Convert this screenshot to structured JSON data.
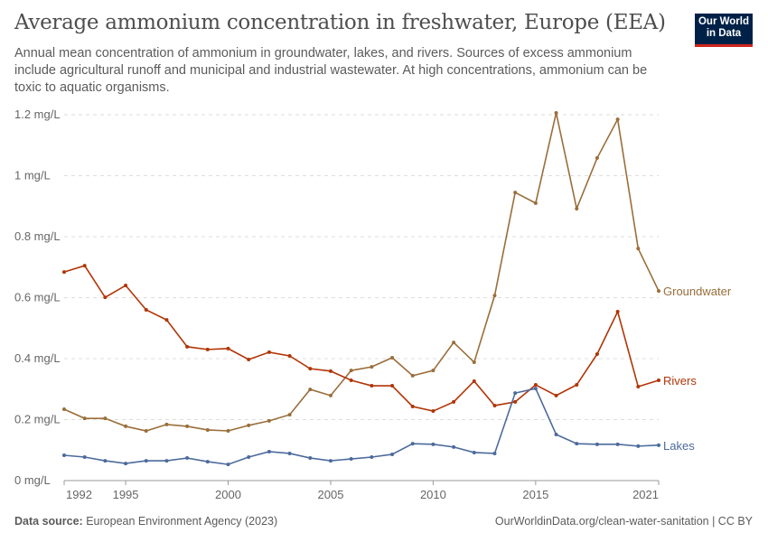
{
  "header": {
    "title": "Average ammonium concentration in freshwater, Europe (EEA)",
    "subtitle": "Annual mean concentration of ammonium in groundwater, lakes, and rivers. Sources of excess ammonium include agricultural runoff and municipal and industrial wastewater. At high concentrations, ammonium can be toxic to aquatic organisms.",
    "logo_line1": "Our World",
    "logo_line2": "in Data"
  },
  "footer": {
    "source_label": "Data source:",
    "source": "European Environment Agency (2023)",
    "link": "OurWorldinData.org/clean-water-sanitation | CC BY"
  },
  "chart_data": {
    "type": "line",
    "title": "Average ammonium concentration in freshwater, Europe (EEA)",
    "x": [
      1992,
      1993,
      1994,
      1995,
      1996,
      1997,
      1998,
      1999,
      2000,
      2001,
      2002,
      2003,
      2004,
      2005,
      2006,
      2007,
      2008,
      2009,
      2010,
      2011,
      2012,
      2013,
      2014,
      2015,
      2016,
      2017,
      2018,
      2019,
      2020,
      2021
    ],
    "xticks": [
      1992,
      1995,
      2000,
      2005,
      2010,
      2015,
      2021
    ],
    "yticks": [
      0,
      0.2,
      0.4,
      0.6,
      0.8,
      1,
      1.2
    ],
    "ytick_labels": [
      "0 mg/L",
      "0.2 mg/L",
      "0.4 mg/L",
      "0.6 mg/L",
      "0.8 mg/L",
      "1 mg/L",
      "1.2 mg/L"
    ],
    "ylim": [
      0,
      1.2
    ],
    "xlim": [
      1992,
      2021
    ],
    "grid": "horizontal dashed",
    "legend": "inline labels at right end",
    "series": [
      {
        "name": "Groundwater",
        "color": "#9a6e3a",
        "values": [
          0.234,
          0.204,
          0.204,
          0.178,
          0.163,
          0.184,
          0.178,
          0.166,
          0.163,
          0.181,
          0.196,
          0.216,
          0.299,
          0.279,
          0.361,
          0.373,
          0.403,
          0.344,
          0.361,
          0.453,
          0.388,
          0.607,
          0.945,
          0.91,
          1.206,
          0.892,
          1.058,
          1.185,
          0.761,
          0.622
        ]
      },
      {
        "name": "Rivers",
        "color": "#b13507",
        "values": [
          0.684,
          0.705,
          0.601,
          0.64,
          0.56,
          0.527,
          0.439,
          0.43,
          0.433,
          0.397,
          0.421,
          0.409,
          0.367,
          0.359,
          0.329,
          0.311,
          0.311,
          0.243,
          0.228,
          0.258,
          0.326,
          0.246,
          0.258,
          0.314,
          0.279,
          0.314,
          0.415,
          0.554,
          0.308,
          0.329
        ]
      },
      {
        "name": "Lakes",
        "color": "#4c6a9c",
        "values": [
          0.083,
          0.077,
          0.065,
          0.056,
          0.065,
          0.065,
          0.074,
          0.062,
          0.053,
          0.077,
          0.095,
          0.089,
          0.074,
          0.065,
          0.071,
          0.077,
          0.086,
          0.121,
          0.119,
          0.11,
          0.092,
          0.089,
          0.287,
          0.302,
          0.151,
          0.121,
          0.119,
          0.119,
          0.113,
          0.116
        ]
      }
    ]
  }
}
